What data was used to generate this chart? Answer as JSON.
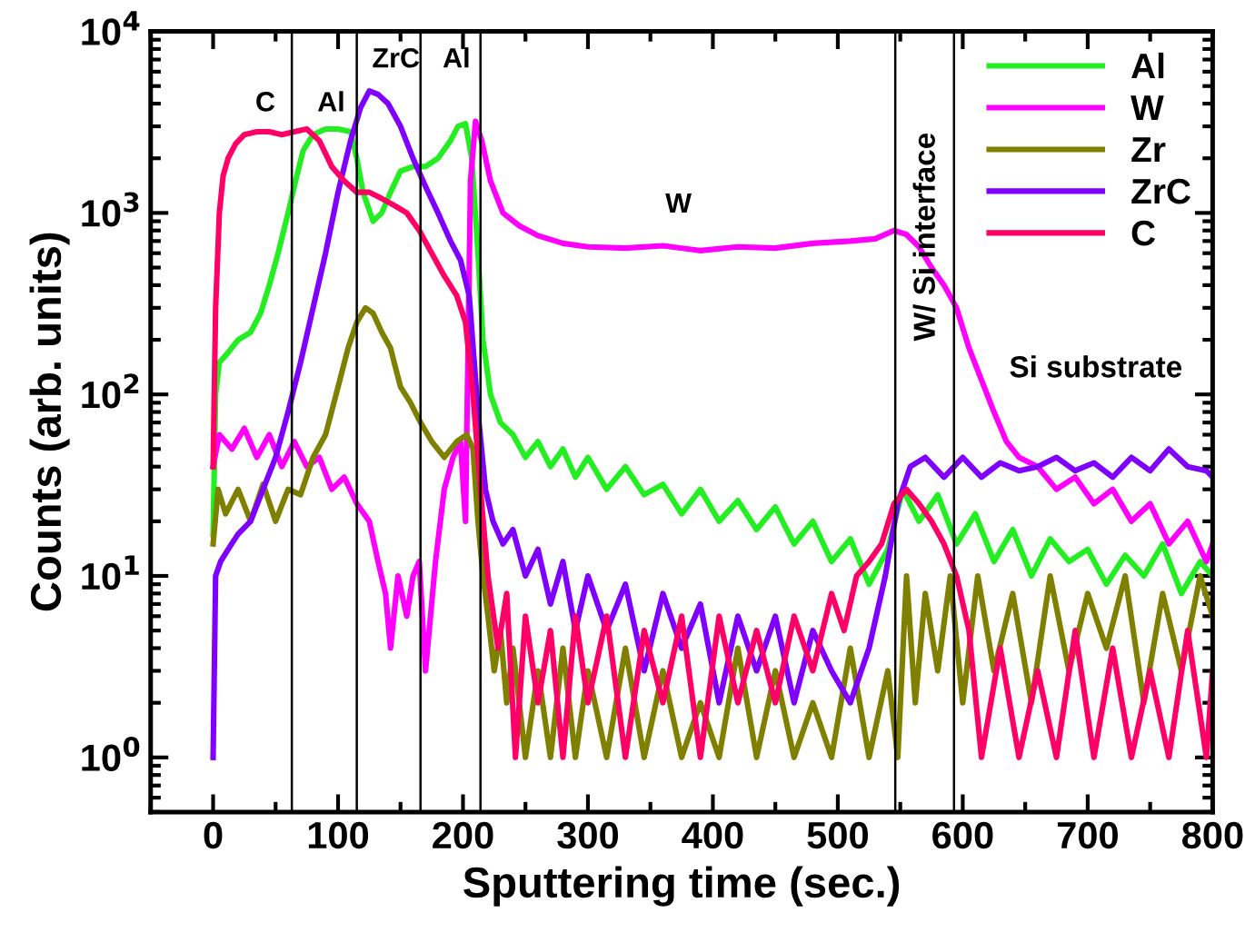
{
  "chart_data": {
    "type": "line",
    "xlabel": "Sputtering time (sec.)",
    "ylabel": "Counts (arb. units)",
    "log": "y",
    "xlim": [
      -50,
      800
    ],
    "xticks": [
      0,
      100,
      200,
      300,
      400,
      500,
      600,
      700,
      800
    ],
    "ylim": [
      0.5,
      10000
    ],
    "yticks": [
      {
        "value": 1,
        "label": "10$^{0}$"
      },
      {
        "value": 10,
        "label": "10$^{1}$"
      },
      {
        "value": 100,
        "label": "10$^{2}$"
      },
      {
        "value": 1000,
        "label": "10$^{3}$"
      },
      {
        "value": 10000,
        "label": "10$^{4}$"
      }
    ],
    "grid": false,
    "legend": "top right",
    "marker": "none",
    "line_style": "solid",
    "ref_lines": [
      {
        "axis": "x",
        "value": 63,
        "color": "#000000"
      },
      {
        "axis": "x",
        "value": 115,
        "color": "#000000"
      },
      {
        "axis": "x",
        "value": 166,
        "color": "#000000"
      },
      {
        "axis": "x",
        "value": 214,
        "color": "#000000"
      },
      {
        "axis": "x",
        "value": 546,
        "color": "#000000"
      },
      {
        "axis": "x",
        "value": 593,
        "color": "#000000"
      }
    ],
    "annotations": [
      "C",
      "Al",
      "ZrC",
      "Al",
      "W",
      "W/ Si interface",
      "Si substrate"
    ],
    "series": [
      {
        "name": "Al",
        "color": "#22ee22",
        "x": [
          0,
          2,
          5,
          12,
          20,
          30,
          38,
          45,
          52,
          60,
          66,
          72,
          80,
          90,
          100,
          110,
          115,
          120,
          128,
          135,
          142,
          150,
          160,
          170,
          180,
          190,
          196,
          202,
          207,
          212,
          216,
          222,
          230,
          240,
          250,
          260,
          270,
          280,
          290,
          300,
          315,
          330,
          345,
          360,
          375,
          390,
          405,
          420,
          435,
          450,
          465,
          480,
          495,
          510,
          525,
          540,
          552,
          565,
          580,
          595,
          610,
          625,
          640,
          655,
          670,
          685,
          700,
          715,
          730,
          745,
          760,
          775,
          790,
          800
        ],
        "values": [
          17,
          100,
          150,
          170,
          200,
          220,
          280,
          400,
          600,
          1000,
          1500,
          2200,
          2700,
          2900,
          2900,
          2800,
          2000,
          1300,
          900,
          1000,
          1300,
          1700,
          1800,
          1800,
          2000,
          2500,
          3000,
          3100,
          2000,
          600,
          200,
          100,
          70,
          60,
          45,
          55,
          40,
          50,
          35,
          45,
          30,
          40,
          28,
          32,
          22,
          30,
          20,
          26,
          18,
          24,
          15,
          20,
          12,
          16,
          9,
          14,
          30,
          20,
          28,
          15,
          22,
          12,
          18,
          10,
          16,
          12,
          14,
          9,
          13,
          10,
          15,
          8,
          12,
          10
        ]
      },
      {
        "name": "W",
        "color": "#ff00ff",
        "x": [
          0,
          5,
          15,
          25,
          35,
          45,
          55,
          65,
          75,
          85,
          95,
          105,
          115,
          125,
          132,
          138,
          142,
          148,
          155,
          160,
          165,
          170,
          178,
          185,
          192,
          198,
          202,
          206,
          210,
          215,
          222,
          232,
          245,
          260,
          280,
          300,
          330,
          360,
          390,
          420,
          450,
          480,
          510,
          530,
          545,
          555,
          565,
          575,
          585,
          595,
          605,
          615,
          625,
          635,
          645,
          660,
          675,
          690,
          705,
          720,
          735,
          750,
          765,
          780,
          795,
          800
        ],
        "values": [
          40,
          60,
          50,
          65,
          45,
          60,
          40,
          55,
          40,
          45,
          30,
          35,
          25,
          20,
          12,
          8,
          4,
          10,
          6,
          10,
          12,
          3,
          12,
          30,
          45,
          55,
          20,
          1500,
          3200,
          2500,
          1500,
          1000,
          850,
          750,
          680,
          650,
          640,
          660,
          620,
          650,
          640,
          680,
          700,
          720,
          800,
          760,
          650,
          500,
          400,
          300,
          180,
          120,
          80,
          55,
          45,
          40,
          30,
          35,
          25,
          30,
          20,
          25,
          15,
          20,
          12,
          15
        ]
      },
      {
        "name": "Zr",
        "color": "#808000",
        "x": [
          0,
          4,
          10,
          20,
          30,
          40,
          50,
          60,
          70,
          80,
          90,
          100,
          108,
          115,
          122,
          128,
          135,
          142,
          150,
          158,
          166,
          175,
          185,
          195,
          203,
          208,
          212,
          216,
          220,
          225,
          230,
          235,
          240,
          250,
          260,
          270,
          280,
          290,
          300,
          315,
          330,
          345,
          360,
          375,
          390,
          405,
          420,
          435,
          450,
          465,
          480,
          495,
          510,
          525,
          540,
          548,
          555,
          562,
          570,
          580,
          590,
          600,
          612,
          625,
          640,
          655,
          670,
          685,
          700,
          715,
          730,
          745,
          760,
          775,
          790,
          800
        ],
        "values": [
          15,
          30,
          22,
          30,
          20,
          32,
          20,
          30,
          28,
          45,
          60,
          110,
          180,
          250,
          300,
          280,
          220,
          180,
          110,
          90,
          70,
          55,
          45,
          55,
          60,
          50,
          20,
          10,
          6,
          3,
          5,
          2,
          4,
          1,
          3,
          1,
          4,
          1,
          3,
          1,
          4,
          1,
          3,
          1,
          2,
          1,
          4,
          1,
          3,
          1,
          2,
          1,
          4,
          1,
          3,
          1,
          10,
          2,
          8,
          3,
          10,
          2,
          10,
          3,
          8,
          2,
          10,
          3,
          8,
          4,
          10,
          2,
          8,
          3,
          10,
          6
        ]
      },
      {
        "name": "ZrC",
        "color": "#8000ff",
        "x": [
          0,
          2,
          6,
          12,
          20,
          30,
          40,
          50,
          60,
          70,
          80,
          90,
          100,
          110,
          118,
          125,
          132,
          140,
          150,
          160,
          170,
          180,
          190,
          198,
          205,
          212,
          218,
          224,
          232,
          240,
          250,
          260,
          270,
          280,
          290,
          300,
          315,
          330,
          345,
          360,
          375,
          390,
          405,
          420,
          435,
          450,
          465,
          480,
          495,
          510,
          525,
          538,
          548,
          558,
          570,
          585,
          600,
          615,
          630,
          645,
          660,
          675,
          690,
          705,
          720,
          735,
          750,
          765,
          780,
          795,
          800
        ],
        "values": [
          1,
          10,
          12,
          14,
          17,
          20,
          30,
          45,
          80,
          150,
          300,
          600,
          1300,
          2500,
          3800,
          4700,
          4500,
          4000,
          3000,
          2000,
          1400,
          1000,
          700,
          550,
          350,
          80,
          30,
          20,
          15,
          18,
          10,
          14,
          7,
          12,
          5,
          10,
          5,
          9,
          3,
          8,
          4,
          7,
          2,
          6,
          3,
          6,
          2,
          5,
          3,
          2,
          4,
          10,
          25,
          40,
          45,
          35,
          45,
          35,
          42,
          38,
          40,
          45,
          38,
          42,
          35,
          45,
          38,
          50,
          40,
          38,
          35
        ]
      },
      {
        "name": "C",
        "color": "#ff0066",
        "x": [
          0,
          2,
          5,
          8,
          12,
          18,
          25,
          35,
          45,
          55,
          65,
          75,
          85,
          95,
          105,
          115,
          125,
          135,
          145,
          155,
          165,
          175,
          185,
          195,
          202,
          208,
          214,
          220,
          228,
          235,
          242,
          250,
          260,
          270,
          280,
          290,
          300,
          315,
          330,
          345,
          360,
          375,
          390,
          405,
          420,
          435,
          450,
          465,
          480,
          495,
          505,
          515,
          525,
          535,
          545,
          555,
          565,
          575,
          585,
          595,
          605,
          615,
          630,
          645,
          660,
          675,
          690,
          705,
          720,
          735,
          750,
          765,
          780,
          795,
          800
        ],
        "values": [
          40,
          300,
          1000,
          1600,
          2000,
          2400,
          2700,
          2800,
          2800,
          2700,
          2800,
          2900,
          2500,
          1800,
          1500,
          1300,
          1300,
          1200,
          1100,
          1000,
          800,
          600,
          450,
          350,
          250,
          100,
          30,
          10,
          4,
          8,
          1,
          6,
          2,
          5,
          1,
          6,
          2,
          6,
          1,
          5,
          2,
          6,
          1,
          6,
          2,
          5,
          2,
          6,
          3,
          8,
          5,
          10,
          12,
          15,
          25,
          30,
          25,
          20,
          15,
          10,
          5,
          1,
          4,
          1,
          3,
          1,
          5,
          1,
          4,
          1,
          3,
          1,
          5,
          1,
          3
        ]
      }
    ]
  }
}
